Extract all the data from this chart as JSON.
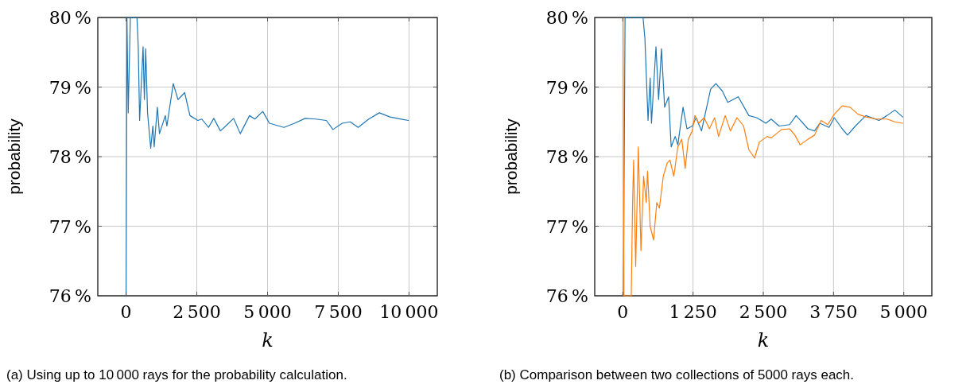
{
  "chart_data": [
    {
      "type": "line",
      "xlabel": "k",
      "ylabel": "probability",
      "annotations": [
        "(a) Using up to 10 000 rays for the probability calculation."
      ],
      "xlim": [
        -1000,
        11000
      ],
      "xticks": [
        0,
        {
          "value": 2500,
          "label": "2 500"
        },
        {
          "value": 5000,
          "label": "5 000"
        },
        {
          "value": 7500,
          "label": "7 500"
        },
        {
          "value": 10000,
          "label": "10 000"
        }
      ],
      "ylim": [
        76,
        80
      ],
      "yticks": [
        {
          "value": 76,
          "label": "76 %"
        },
        {
          "value": 77,
          "label": "77 %"
        },
        {
          "value": 78,
          "label": "78 %"
        },
        {
          "value": 79,
          "label": "79 %"
        },
        {
          "value": 80,
          "label": "80 %"
        }
      ],
      "grid": true,
      "series": [
        {
          "color": "#1f77b4",
          "x": [
            0,
            30,
            75,
            150,
            385,
            430,
            478,
            600,
            646,
            693,
            758,
            871,
            946,
            993,
            1105,
            1180,
            1386,
            1442,
            1667,
            1835,
            2070,
            2257,
            2538,
            2678,
            2912,
            3100,
            3334,
            3521,
            3802,
            4036,
            4363,
            4550,
            4831,
            5066,
            5581,
            5955,
            6330,
            6705,
            7079,
            7312,
            7641,
            7922,
            8203,
            8577,
            8952,
            9326,
            9981
          ],
          "values": [
            76,
            80,
            78.63,
            80,
            80,
            79.58,
            78.52,
            79.58,
            78.82,
            79.55,
            78.63,
            78.12,
            78.44,
            78.14,
            78.71,
            78.33,
            78.59,
            78.44,
            79.05,
            78.82,
            78.92,
            78.59,
            78.52,
            78.54,
            78.42,
            78.55,
            78.37,
            78.44,
            78.55,
            78.33,
            78.59,
            78.54,
            78.65,
            78.48,
            78.42,
            78.48,
            78.55,
            78.54,
            78.52,
            78.39,
            78.48,
            78.5,
            78.42,
            78.54,
            78.63,
            78.57,
            78.52
          ]
        }
      ]
    },
    {
      "type": "line",
      "xlabel": "k",
      "ylabel": "probability",
      "annotations": [
        "(b) Comparison between two collections of 5000 rays each."
      ],
      "xlim": [
        -500,
        5500
      ],
      "xticks": [
        0,
        {
          "value": 1250,
          "label": "1 250"
        },
        {
          "value": 2500,
          "label": "2 500"
        },
        {
          "value": 3750,
          "label": "3 750"
        },
        {
          "value": 5000,
          "label": "5 000"
        }
      ],
      "ylim": [
        76,
        80
      ],
      "yticks": [
        {
          "value": 76,
          "label": "76 %"
        },
        {
          "value": 77,
          "label": "77 %"
        },
        {
          "value": 78,
          "label": "78 %"
        },
        {
          "value": 79,
          "label": "79 %"
        },
        {
          "value": 80,
          "label": "80 %"
        }
      ],
      "grid": true,
      "series": [
        {
          "color": "#1f77b4",
          "x": [
            10,
            40,
            360,
            393,
            449,
            487,
            510,
            590,
            637,
            688,
            744,
            815,
            861,
            932,
            979,
            1072,
            1142,
            1236,
            1306,
            1400,
            1563,
            1657,
            1774,
            1868,
            2055,
            2243,
            2383,
            2547,
            2640,
            2781,
            2968,
            3085,
            3296,
            3413,
            3507,
            3670,
            3764,
            3905,
            3999,
            4139,
            4326,
            4560,
            4701,
            4841,
            4982
          ],
          "values": [
            76,
            80,
            80,
            79.7,
            78.52,
            79.13,
            78.48,
            79.58,
            78.82,
            79.55,
            78.71,
            78.86,
            78.14,
            78.29,
            78.17,
            78.71,
            78.4,
            78.44,
            78.56,
            78.37,
            78.97,
            79.05,
            78.94,
            78.78,
            78.86,
            78.59,
            78.56,
            78.48,
            78.54,
            78.44,
            78.46,
            78.59,
            78.4,
            78.37,
            78.48,
            78.42,
            78.56,
            78.4,
            78.31,
            78.44,
            78.59,
            78.52,
            78.59,
            78.67,
            78.57
          ]
        },
        {
          "color": "#ff7f0e",
          "x": [
            5,
            20,
            150,
            173,
            192,
            229,
            276,
            323,
            370,
            417,
            440,
            487,
            548,
            604,
            651,
            721,
            791,
            838,
            908,
            979,
            1049,
            1110,
            1166,
            1236,
            1283,
            1353,
            1447,
            1541,
            1634,
            1704,
            1822,
            1915,
            2032,
            2149,
            2243,
            2346,
            2430,
            2570,
            2640,
            2827,
            2968,
            3062,
            3156,
            3296,
            3413,
            3530,
            3647,
            3764,
            3905,
            4045,
            4186,
            4326,
            4513,
            4701,
            4841,
            4982
          ],
          "values": [
            80,
            76,
            76,
            77.3,
            77.95,
            76.42,
            78.14,
            76.65,
            77.72,
            77.34,
            77.79,
            77,
            76.8,
            77.34,
            77.26,
            77.72,
            77.91,
            77.95,
            77.72,
            78.14,
            78.25,
            77.83,
            78.25,
            78.37,
            78.59,
            78.48,
            78.56,
            78.4,
            78.56,
            78.29,
            78.59,
            78.37,
            78.56,
            78.44,
            78.1,
            77.98,
            78.21,
            78.29,
            78.27,
            78.39,
            78.4,
            78.31,
            78.17,
            78.25,
            78.31,
            78.52,
            78.46,
            78.61,
            78.73,
            78.71,
            78.61,
            78.57,
            78.54,
            78.54,
            78.5,
            78.48
          ]
        }
      ]
    }
  ]
}
